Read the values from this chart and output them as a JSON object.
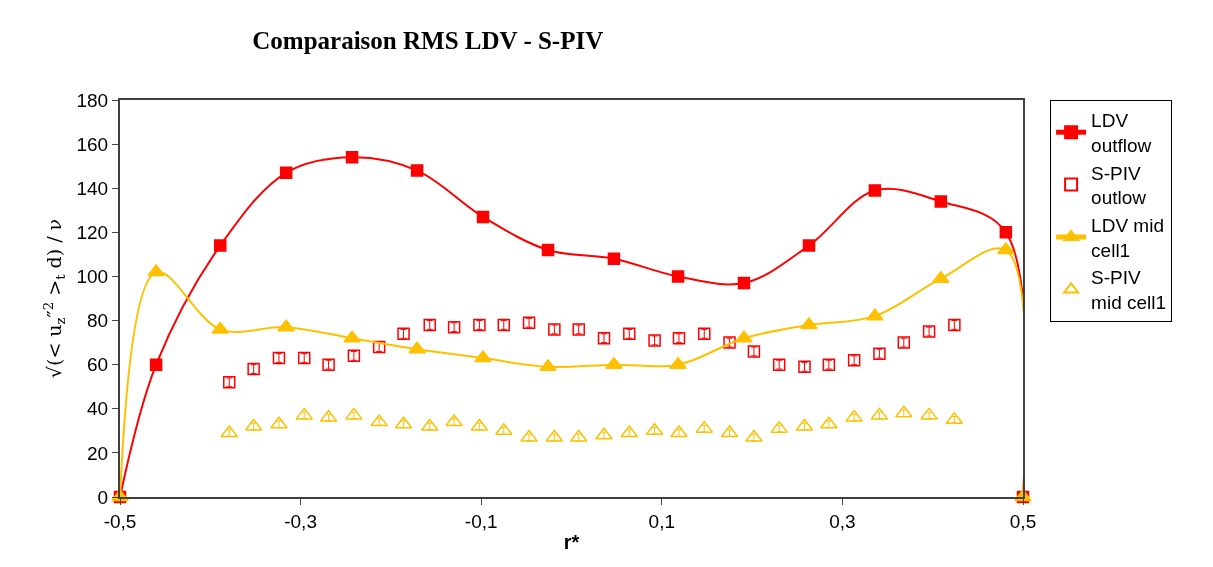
{
  "chart_data": {
    "type": "line",
    "title": "Comparaison RMS LDV - S-PIV",
    "xlabel": "r*",
    "ylabel": "√(< u$_{z}$″$^{2}$ >$_{t}$ d) / ν",
    "xlim": [
      -0.5,
      0.5
    ],
    "xticks": [
      {
        "value": -0.5,
        "label": "-0,5"
      },
      {
        "value": -0.3,
        "label": "-0,3"
      },
      {
        "value": -0.1,
        "label": "-0,1"
      },
      {
        "value": 0.1,
        "label": "0,1"
      },
      {
        "value": 0.3,
        "label": "0,3"
      },
      {
        "value": 0.5,
        "label": "0,5"
      }
    ],
    "ylim": [
      0,
      180
    ],
    "yticks": [
      0,
      20,
      40,
      60,
      80,
      100,
      120,
      140,
      160,
      180
    ],
    "legend": "right",
    "series": [
      {
        "name": "LDV\noutflow",
        "color": "#ff0000",
        "marker": "square",
        "line_style": "solid",
        "x": [
          -0.5,
          -0.46,
          -0.389,
          -0.316,
          -0.243,
          -0.171,
          -0.098,
          -0.026,
          0.047,
          0.118,
          0.191,
          0.263,
          0.336,
          0.409,
          0.481,
          0.5
        ],
        "values": [
          0,
          60,
          114,
          147,
          154,
          148,
          127,
          112,
          108,
          100,
          97,
          114,
          139,
          134,
          120,
          0
        ]
      },
      {
        "name": "S-PIV\noutlow",
        "type": "scatter",
        "color": "#ff0000",
        "marker": "square",
        "x": [
          -0.379,
          -0.352,
          -0.324,
          -0.296,
          -0.269,
          -0.241,
          -0.213,
          -0.186,
          -0.157,
          -0.13,
          -0.102,
          -0.075,
          -0.047,
          -0.019,
          0.008,
          0.036,
          0.064,
          0.092,
          0.119,
          0.147,
          0.175,
          0.202,
          0.23,
          0.258,
          0.285,
          0.313,
          0.341,
          0.368,
          0.396,
          0.424
        ],
        "values": [
          52,
          58,
          63,
          63,
          60,
          64,
          68,
          74,
          78,
          77,
          78,
          78,
          79,
          76,
          76,
          72,
          74,
          71,
          72,
          74,
          70,
          66,
          60,
          59,
          60,
          62,
          65,
          70,
          75,
          78
        ],
        "errors": [
          2,
          2,
          2,
          2,
          2,
          2,
          2,
          2,
          2,
          2,
          2,
          2,
          2,
          2,
          2,
          2,
          2,
          2,
          2,
          2,
          2,
          2,
          2,
          2,
          2,
          2,
          2,
          2,
          2,
          2
        ]
      },
      {
        "name": "LDV mid\ncell1",
        "color": "#ffc000",
        "marker": "triangle",
        "line_style": "solid",
        "x": [
          -0.5,
          -0.46,
          -0.389,
          -0.316,
          -0.243,
          -0.171,
          -0.098,
          -0.026,
          0.047,
          0.118,
          0.191,
          0.263,
          0.336,
          0.409,
          0.481,
          0.5
        ],
        "values": [
          0,
          102,
          76,
          77,
          72,
          67,
          63,
          59,
          60,
          60,
          72,
          78,
          82,
          99,
          112,
          0
        ]
      },
      {
        "name": "S-PIV\nmid cell1",
        "type": "scatter",
        "color": "#ffc000",
        "marker": "triangle",
        "x": [
          -0.379,
          -0.352,
          -0.324,
          -0.296,
          -0.269,
          -0.241,
          -0.213,
          -0.186,
          -0.157,
          -0.13,
          -0.102,
          -0.075,
          -0.047,
          -0.019,
          0.008,
          0.036,
          0.064,
          0.092,
          0.119,
          0.147,
          0.175,
          0.202,
          0.23,
          0.258,
          0.285,
          0.313,
          0.341,
          0.368,
          0.396,
          0.424
        ],
        "values": [
          29,
          32,
          33,
          37,
          36,
          37,
          34,
          33,
          32,
          34,
          32,
          30,
          27,
          27,
          27,
          28,
          29,
          30,
          29,
          31,
          29,
          27,
          31,
          32,
          33,
          36,
          37,
          38,
          37,
          35
        ],
        "errors": [
          1.5,
          1.5,
          1.5,
          1.5,
          1.5,
          1.5,
          1.5,
          1.5,
          1.5,
          1.5,
          1.5,
          1.5,
          1.5,
          1.5,
          1.5,
          1.5,
          1.5,
          1.5,
          1.5,
          1.5,
          1.5,
          1.5,
          1.5,
          1.5,
          1.5,
          1.5,
          1.5,
          1.5,
          1.5,
          1.5
        ]
      }
    ]
  }
}
